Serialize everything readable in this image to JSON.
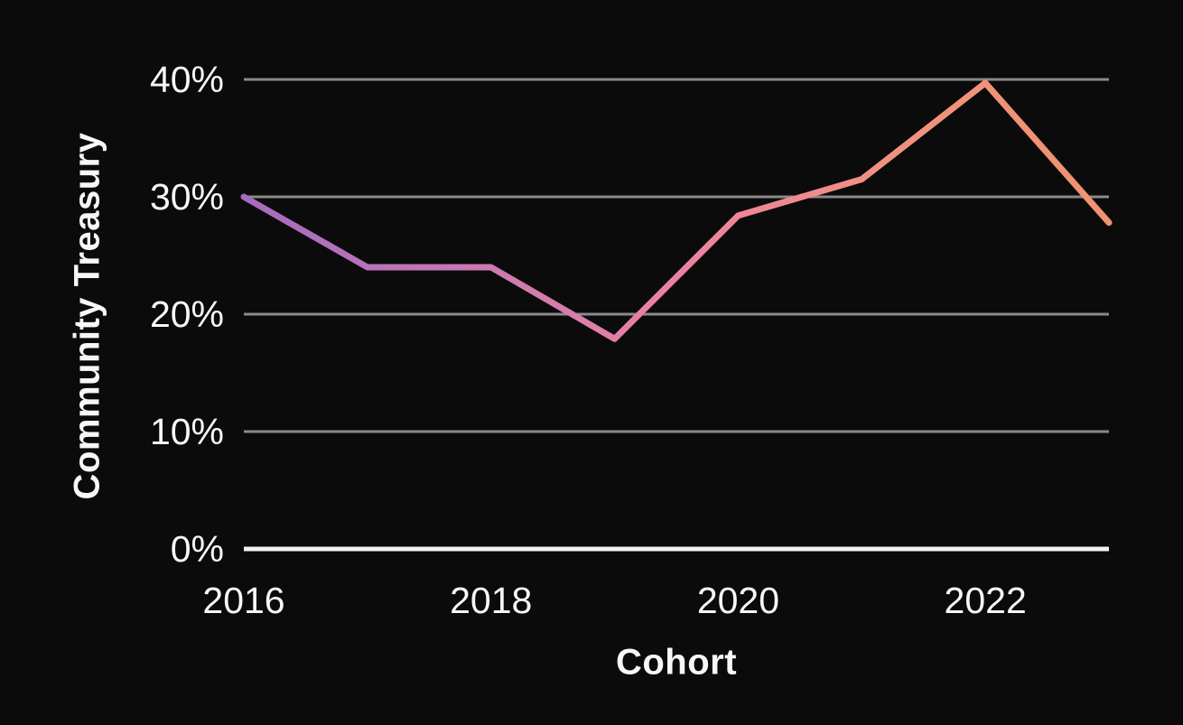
{
  "chart_data": {
    "type": "line",
    "title": "",
    "xlabel": "Cohort",
    "ylabel": "Community Treasury",
    "x": [
      2016,
      2017,
      2018,
      2019,
      2020,
      2021,
      2022,
      2023
    ],
    "series": [
      {
        "name": "Community Treasury",
        "values": [
          30,
          24,
          24,
          17.9,
          28.4,
          31.5,
          39.7,
          27.8
        ]
      }
    ],
    "value_unit": "percent",
    "x_tick_years": [
      2016,
      2018,
      2020,
      2022
    ],
    "x_tick_labels": [
      "2016",
      "2018",
      "2020",
      "2022"
    ],
    "y_ticks": [
      0,
      10,
      20,
      30,
      40
    ],
    "y_tick_labels": [
      "0%",
      "10%",
      "20%",
      "30%",
      "40%"
    ],
    "ylim": [
      0,
      40
    ],
    "grid": "horizontal",
    "legend": "none",
    "colors": {
      "background": "#0b0b0b",
      "gridline": "#8a8a8a",
      "baseline": "#f2f2f2",
      "text": "#f7f7f7",
      "line_gradient": [
        "#a46cbd",
        "#c778b4",
        "#ec81a2",
        "#f2917f",
        "#ef9370"
      ]
    }
  }
}
